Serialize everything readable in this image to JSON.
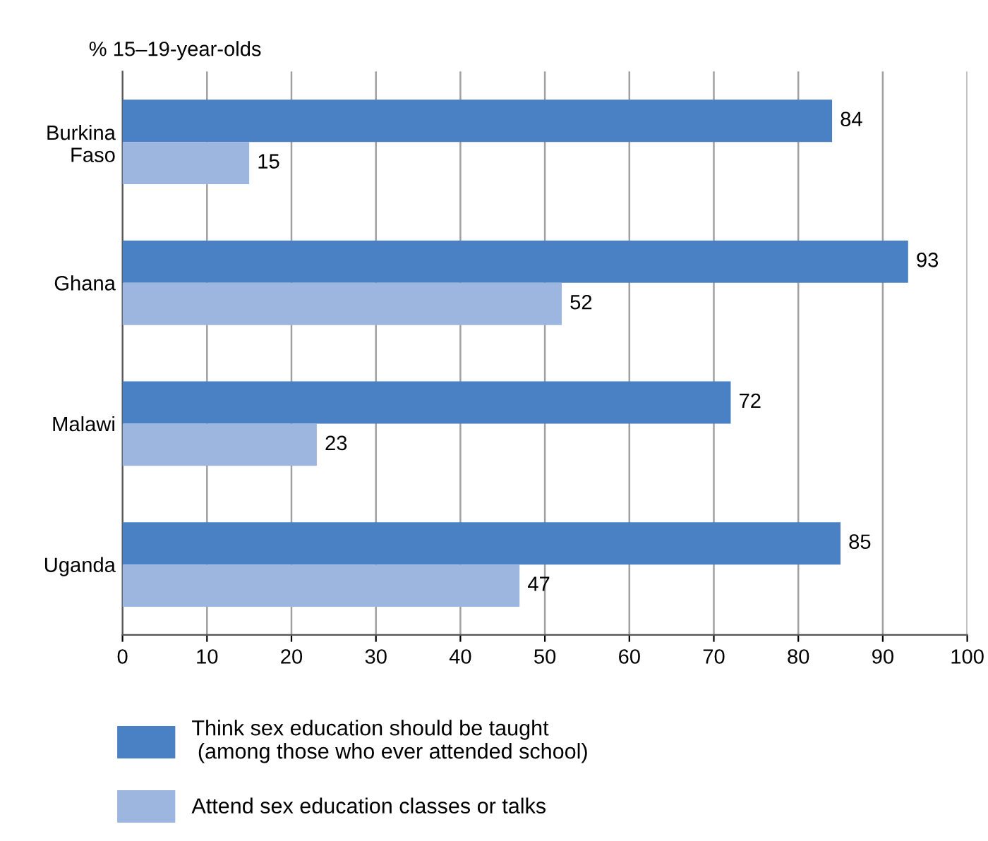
{
  "chart_data": {
    "type": "bar",
    "orientation": "horizontal",
    "ylabel": "% 15–19-year-olds",
    "categories": [
      "Burkina\nFaso",
      "Ghana",
      "Malawi",
      "Uganda"
    ],
    "series": [
      {
        "name": "Think sex education should be taught\n (among those who ever attended school)",
        "color": "#4a80c4",
        "values": [
          84,
          93,
          72,
          85
        ]
      },
      {
        "name": "Attend sex education classes or talks",
        "color": "#9db6e0",
        "values": [
          15,
          52,
          23,
          47
        ]
      }
    ],
    "xlim": [
      0,
      100
    ],
    "xticks": [
      0,
      10,
      20,
      30,
      40,
      50,
      60,
      70,
      80,
      90,
      100
    ],
    "grid": "x",
    "legend": "bottom",
    "data_labels": true
  }
}
